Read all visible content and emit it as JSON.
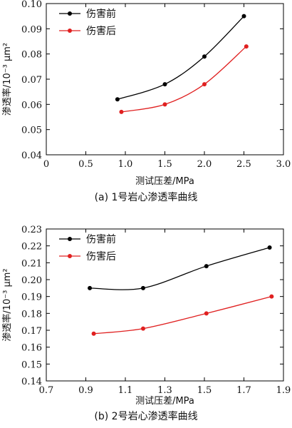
{
  "chart_data": [
    {
      "type": "line",
      "caption": "(a)  1号岩心渗透率曲线",
      "xlabel": "测试压差/MPa",
      "ylabel": "渗透率/10⁻³ μm²",
      "xlim": [
        0,
        3.0
      ],
      "ylim": [
        0.04,
        0.1
      ],
      "xticks": [
        "0",
        "0.5",
        "1.0",
        "1.5",
        "2.0",
        "2.5",
        "3.0"
      ],
      "yticks": [
        "0.04",
        "0.05",
        "0.06",
        "0.07",
        "0.08",
        "0.09",
        "0.10"
      ],
      "legend_position": "top-left",
      "series": [
        {
          "name": "伤害前",
          "color": "#000000",
          "x": [
            0.9,
            1.5,
            2.0,
            2.5
          ],
          "y": [
            0.062,
            0.068,
            0.079,
            0.095
          ]
        },
        {
          "name": "伤害后",
          "color": "#e02020",
          "x": [
            0.95,
            1.5,
            2.0,
            2.53
          ],
          "y": [
            0.057,
            0.06,
            0.068,
            0.083
          ]
        }
      ]
    },
    {
      "type": "line",
      "caption": "(b)  2号岩心渗透率曲线",
      "xlabel": "测试压差/MPa",
      "ylabel": "渗透率/10⁻³ μm²",
      "xlim": [
        0.7,
        1.9
      ],
      "ylim": [
        0.14,
        0.23
      ],
      "xticks": [
        "0.7",
        "0.9",
        "1.1",
        "1.3",
        "1.5",
        "1.7",
        "1.9"
      ],
      "yticks": [
        "0.14",
        "0.15",
        "0.16",
        "0.17",
        "0.18",
        "0.19",
        "0.20",
        "0.21",
        "0.22",
        "0.23"
      ],
      "legend_position": "top-left",
      "series": [
        {
          "name": "伤害前",
          "color": "#000000",
          "x": [
            0.92,
            1.19,
            1.51,
            1.83
          ],
          "y": [
            0.195,
            0.195,
            0.208,
            0.219
          ]
        },
        {
          "name": "伤害后",
          "color": "#e02020",
          "x": [
            0.94,
            1.19,
            1.51,
            1.84
          ],
          "y": [
            0.168,
            0.171,
            0.18,
            0.19
          ]
        }
      ]
    }
  ]
}
